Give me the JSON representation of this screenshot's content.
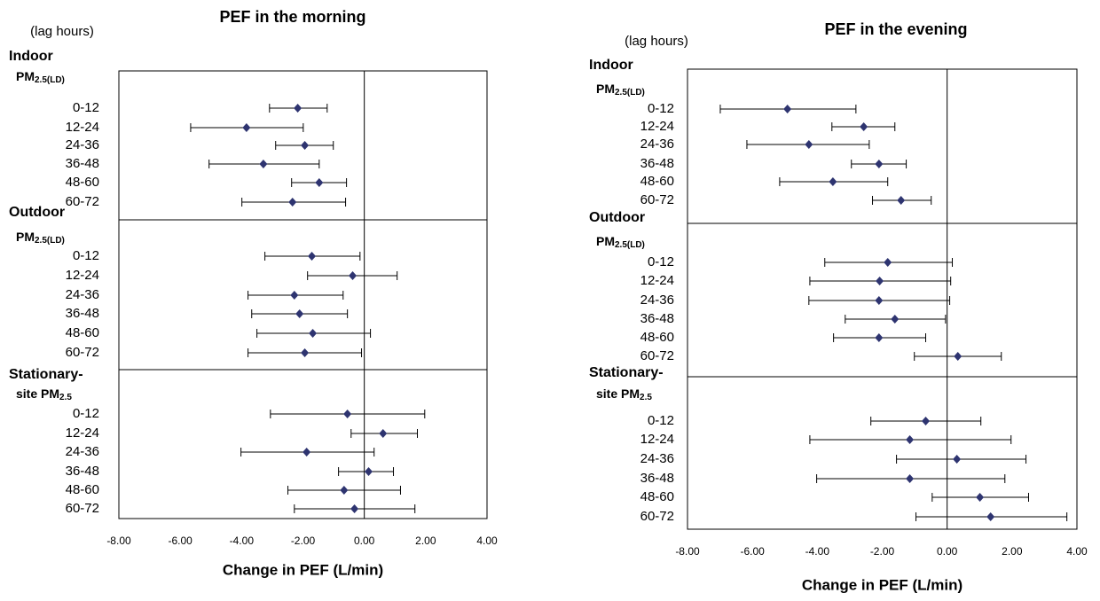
{
  "chart_data": [
    {
      "type": "forest",
      "title": "PEF in the morning",
      "xlabel": "Change in PEF (L/min)",
      "lag_label": "(lag hours)",
      "xlim": [
        -8,
        4
      ],
      "xticks": [
        {
          "value": -8,
          "label": "-8.00"
        },
        {
          "value": -6,
          "label": "-6.00"
        },
        {
          "value": -4,
          "label": "-4.00"
        },
        {
          "value": -2,
          "label": "-2.00"
        },
        {
          "value": 0,
          "label": "0.00"
        },
        {
          "value": 2,
          "label": "2.00"
        },
        {
          "value": 4,
          "label": "4.00"
        }
      ],
      "color": "#2e3470",
      "groups": [
        {
          "name": "Indoor",
          "pollutant": "PM",
          "pollutant_sub": "2.5(LD)",
          "categories": [
            "0-12",
            "12-24",
            "24-36",
            "36-48",
            "48-60",
            "60-72"
          ],
          "values": [
            -2.17,
            -3.84,
            -1.94,
            -3.29,
            -1.47,
            -2.34
          ],
          "lower": [
            -3.09,
            -5.66,
            -2.89,
            -5.06,
            -2.37,
            -3.99
          ],
          "upper": [
            -1.21,
            -1.99,
            -1.01,
            -1.47,
            -0.58,
            -0.61
          ]
        },
        {
          "name": "Outdoor",
          "pollutant": "PM",
          "pollutant_sub": "2.5(LD)",
          "categories": [
            "0-12",
            "12-24",
            "24-36",
            "36-48",
            "48-60",
            "60-72"
          ],
          "values": [
            -1.71,
            -0.38,
            -2.28,
            -2.11,
            -1.68,
            -1.94
          ],
          "lower": [
            -3.24,
            -1.85,
            -3.79,
            -3.67,
            -3.5,
            -3.79
          ],
          "upper": [
            -0.14,
            1.07,
            -0.69,
            -0.55,
            0.2,
            -0.09
          ]
        },
        {
          "name": "Stationary-",
          "pollutant": "site PM",
          "pollutant_sub": "2.5",
          "categories": [
            "0-12",
            "12-24",
            "24-36",
            "36-48",
            "48-60",
            "60-72"
          ],
          "values": [
            -0.55,
            0.61,
            -1.88,
            0.14,
            -0.66,
            -0.32
          ],
          "lower": [
            -3.06,
            -0.43,
            -4.02,
            -0.84,
            -2.49,
            -2.28
          ],
          "upper": [
            1.97,
            1.73,
            0.32,
            0.95,
            1.18,
            1.65
          ]
        }
      ]
    },
    {
      "type": "forest",
      "title": "PEF in the evening",
      "xlabel": "Change in PEF (L/min)",
      "lag_label": "(lag hours)",
      "xlim": [
        -8,
        4
      ],
      "xticks": [
        {
          "value": -8,
          "label": "-8.00"
        },
        {
          "value": -6,
          "label": "-6.00"
        },
        {
          "value": -4,
          "label": "-4.00"
        },
        {
          "value": -2,
          "label": "-2.00"
        },
        {
          "value": 0,
          "label": "0.00"
        },
        {
          "value": 2,
          "label": "2.00"
        },
        {
          "value": 4,
          "label": "4.00"
        }
      ],
      "color": "#2e3470",
      "groups": [
        {
          "name": "Indoor",
          "pollutant": "PM",
          "pollutant_sub": "2.5(LD)",
          "categories": [
            "0-12",
            "12-24",
            "24-36",
            "36-48",
            "48-60",
            "60-72"
          ],
          "values": [
            -4.92,
            -2.57,
            -4.26,
            -2.1,
            -3.52,
            -1.42
          ],
          "lower": [
            -6.99,
            -3.55,
            -6.17,
            -2.95,
            -5.16,
            -2.3
          ],
          "upper": [
            -2.81,
            -1.61,
            -2.4,
            -1.26,
            -1.83,
            -0.49
          ]
        },
        {
          "name": "Outdoor",
          "pollutant": "PM",
          "pollutant_sub": "2.5(LD)",
          "categories": [
            "0-12",
            "12-24",
            "24-36",
            "36-48",
            "48-60",
            "60-72"
          ],
          "values": [
            -1.83,
            -2.08,
            -2.1,
            -1.61,
            -2.1,
            0.33
          ],
          "lower": [
            -3.77,
            -4.23,
            -4.26,
            -3.14,
            -3.5,
            -1.01
          ],
          "upper": [
            0.16,
            0.11,
            0.08,
            -0.05,
            -0.66,
            1.67
          ]
        },
        {
          "name": "Stationary-",
          "pollutant": "site PM",
          "pollutant_sub": "2.5",
          "categories": [
            "0-12",
            "12-24",
            "24-36",
            "36-48",
            "48-60",
            "60-72"
          ],
          "values": [
            -0.66,
            -1.15,
            0.3,
            -1.15,
            1.01,
            1.34
          ],
          "lower": [
            -2.35,
            -4.23,
            -1.56,
            -4.02,
            -0.46,
            -0.96
          ],
          "upper": [
            1.04,
            1.97,
            2.43,
            1.78,
            2.51,
            3.69
          ]
        }
      ]
    }
  ]
}
